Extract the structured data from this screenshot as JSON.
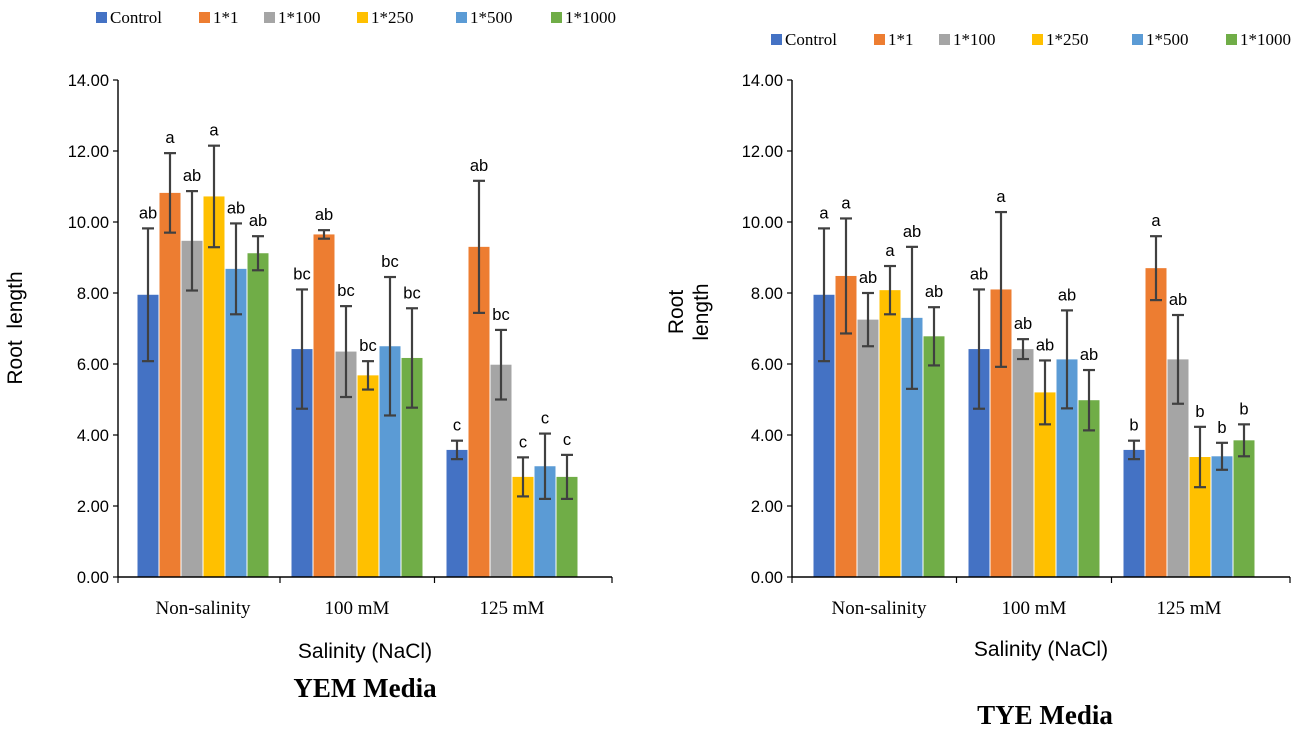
{
  "colors": {
    "Control": "#4472C4",
    "1*1": "#ED7D31",
    "1*100": "#A5A5A5",
    "1*250": "#FFC000",
    "1*500": "#5B9BD5",
    "1*1000": "#70AD47",
    "errorbar": "#404040",
    "axis": "#000000"
  },
  "chart_data": [
    {
      "type": "bar",
      "title": "YEM Media",
      "xlabel": "Salinity (NaCl)",
      "ylabel": "Root  length",
      "ylim": [
        0,
        14
      ],
      "yticks": [
        "0.00",
        "2.00",
        "4.00",
        "6.00",
        "8.00",
        "10.00",
        "12.00",
        "14.00"
      ],
      "categories": [
        "Non-salinity",
        "100 mM",
        "125 mM"
      ],
      "legend_position": "top",
      "series": [
        {
          "name": "Control",
          "values": [
            7.95,
            6.42,
            3.58
          ],
          "errors": [
            1.87,
            1.68,
            0.26
          ],
          "labels": [
            "ab",
            "bc",
            "c"
          ]
        },
        {
          "name": "1*1",
          "values": [
            10.82,
            9.65,
            9.3
          ],
          "errors": [
            1.12,
            0.12,
            1.86
          ],
          "labels": [
            "a",
            "ab",
            "ab"
          ]
        },
        {
          "name": "1*100",
          "values": [
            9.47,
            6.35,
            5.98
          ],
          "errors": [
            1.4,
            1.28,
            0.98
          ],
          "labels": [
            "ab",
            "bc",
            "bc"
          ]
        },
        {
          "name": "1*250",
          "values": [
            10.72,
            5.68,
            2.82
          ],
          "errors": [
            1.43,
            0.4,
            0.55
          ],
          "labels": [
            "a",
            "bc",
            "c"
          ]
        },
        {
          "name": "1*500",
          "values": [
            8.68,
            6.5,
            3.12
          ],
          "errors": [
            1.28,
            1.95,
            0.92
          ],
          "labels": [
            "ab",
            "bc",
            "c"
          ]
        },
        {
          "name": "1*1000",
          "values": [
            9.12,
            6.17,
            2.82
          ],
          "errors": [
            0.48,
            1.4,
            0.62
          ],
          "labels": [
            "ab",
            "bc",
            "c"
          ]
        }
      ]
    },
    {
      "type": "bar",
      "title": "TYE Media",
      "xlabel": "Salinity (NaCl)",
      "ylabel": "Root length",
      "ylabel_lines": [
        "Root",
        "length"
      ],
      "ylim": [
        0,
        14
      ],
      "yticks": [
        "0.00",
        "2.00",
        "4.00",
        "6.00",
        "8.00",
        "10.00",
        "12.00",
        "14.00"
      ],
      "categories": [
        "Non-salinity",
        "100 mM",
        "125 mM"
      ],
      "legend_position": "top",
      "series": [
        {
          "name": "Control",
          "values": [
            7.95,
            6.42,
            3.58
          ],
          "errors": [
            1.87,
            1.68,
            0.26
          ],
          "labels": [
            "a",
            "ab",
            "b"
          ]
        },
        {
          "name": "1*1",
          "values": [
            8.48,
            8.1,
            8.7
          ],
          "errors": [
            1.62,
            2.18,
            0.9
          ],
          "labels": [
            "a",
            "a",
            "a"
          ]
        },
        {
          "name": "1*100",
          "values": [
            7.25,
            6.42,
            6.13
          ],
          "errors": [
            0.75,
            0.28,
            1.25
          ],
          "labels": [
            "ab",
            "ab",
            "ab"
          ]
        },
        {
          "name": "1*250",
          "values": [
            8.08,
            5.2,
            3.38
          ],
          "errors": [
            0.68,
            0.9,
            0.85
          ],
          "labels": [
            "a",
            "ab",
            "b"
          ]
        },
        {
          "name": "1*500",
          "values": [
            7.3,
            6.13,
            3.4
          ],
          "errors": [
            2.0,
            1.38,
            0.38
          ],
          "labels": [
            "ab",
            "ab",
            "b"
          ]
        },
        {
          "name": "1*1000",
          "values": [
            6.78,
            4.98,
            3.85
          ],
          "errors": [
            0.82,
            0.85,
            0.45
          ],
          "labels": [
            "ab",
            "ab",
            "b"
          ]
        }
      ]
    }
  ]
}
